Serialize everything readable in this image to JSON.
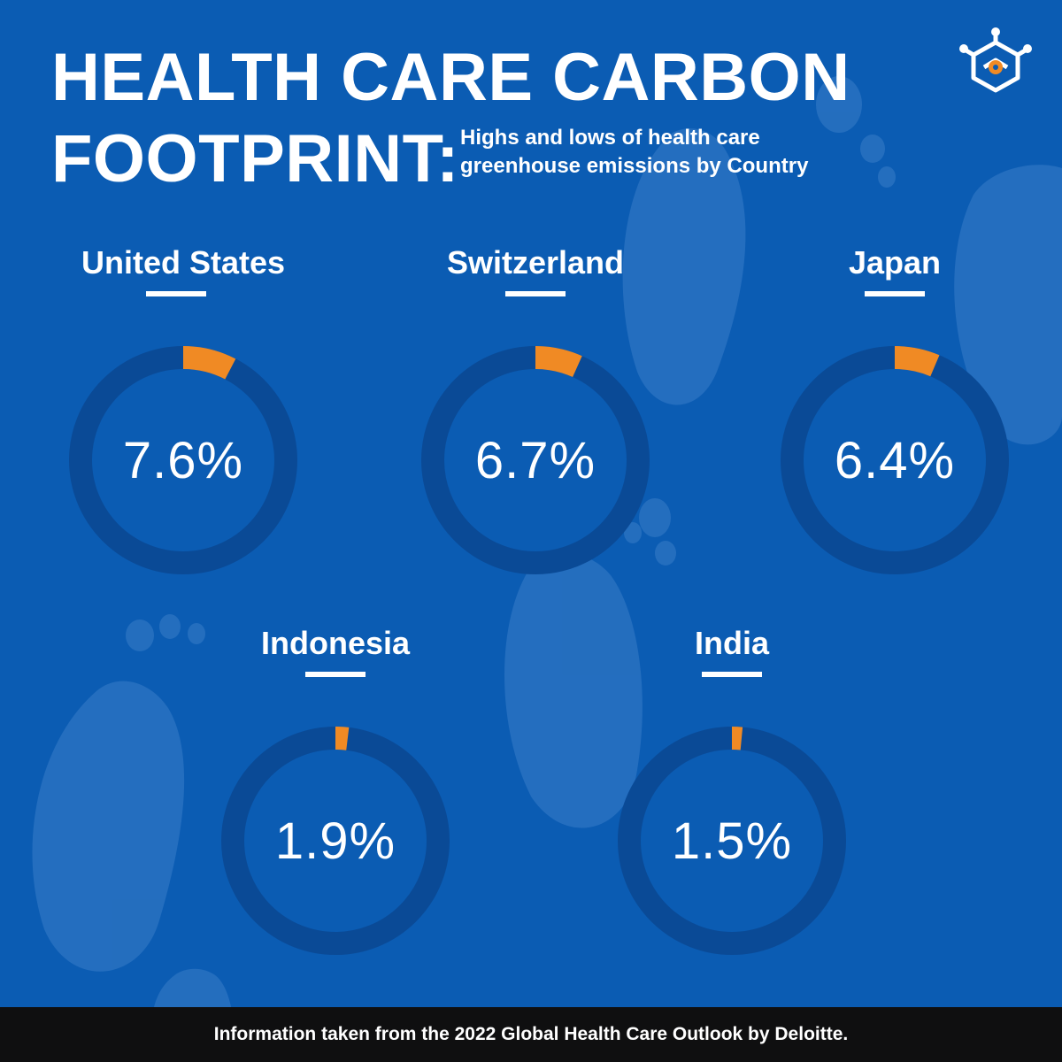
{
  "header": {
    "title_line1": "HEALTH CARE CARBON",
    "title_line2": "FOOTPRINT:",
    "subtitle": "Highs and lows of health care greenhouse emissions by Country"
  },
  "colors": {
    "background": "#0b5cb3",
    "ring_track": "#0a4a96",
    "ring_fill": "#f08a24",
    "footprint": "#3a7dc8",
    "footer_bg": "#0f0f10"
  },
  "chart_data": {
    "type": "pie",
    "unit": "%",
    "categories": [
      "United States",
      "Switzerland",
      "Japan",
      "Indonesia",
      "India"
    ],
    "values": [
      7.6,
      6.7,
      6.4,
      1.9,
      1.5
    ],
    "value_labels": [
      "7.6%",
      "6.7%",
      "6.4%",
      "1.9%",
      "1.5%"
    ]
  },
  "footer": {
    "text": "Information taken from the 2022 Global Health Care Outlook by Deloitte."
  }
}
